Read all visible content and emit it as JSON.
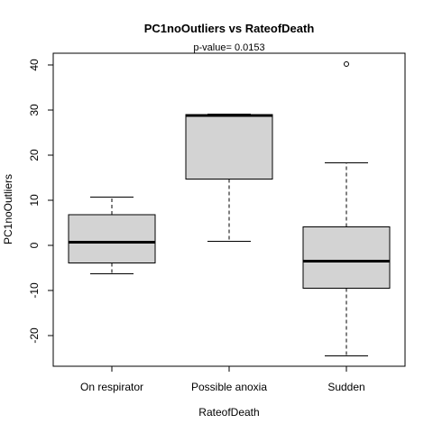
{
  "chart_data": {
    "type": "boxplot",
    "title": "PC1noOutliers  vs  RateofDeath",
    "subtitle": "p-value= 0.0153",
    "xlabel": "RateofDeath",
    "ylabel": "PC1noOutliers",
    "ylim": [
      -27,
      43
    ],
    "yticks": [
      -20,
      -10,
      0,
      10,
      20,
      30,
      40
    ],
    "categories": [
      "On respirator",
      "Possible anoxia",
      "Sudden"
    ],
    "boxes": [
      {
        "category": "On respirator",
        "whisker_low": -6.3,
        "q1": -3.9,
        "median": 0.7,
        "q3": 6.8,
        "whisker_high": 10.7,
        "outliers": []
      },
      {
        "category": "Possible anoxia",
        "whisker_low": 0.9,
        "q1": 14.7,
        "median": 28.8,
        "q3": 29.0,
        "whisker_high": 29.1,
        "outliers": []
      },
      {
        "category": "Sudden",
        "whisker_low": -24.5,
        "q1": -9.5,
        "median": -3.5,
        "q3": 4.1,
        "whisker_high": 18.3,
        "outliers": [
          40.2
        ]
      }
    ],
    "box_fill": "#d3d3d3",
    "line_color": "#000000",
    "grid": false
  }
}
